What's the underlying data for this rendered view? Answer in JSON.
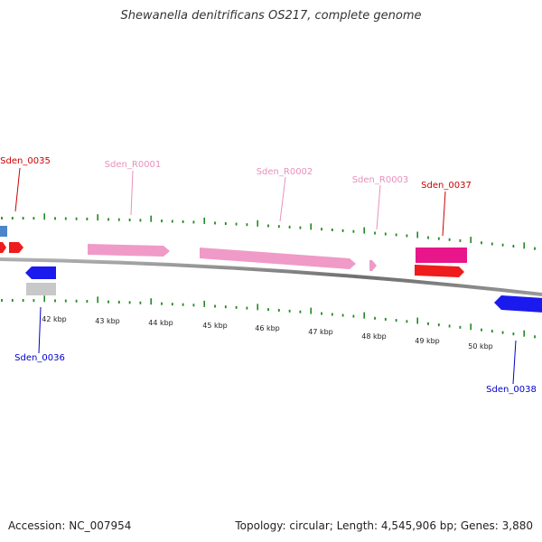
{
  "title": "Shewanella denitrificans OS217, complete genome",
  "footer": {
    "accession": "Accession: NC_007954",
    "summary": "Topology: circular; Length: 4,545,906 bp; Genes: 3,880"
  },
  "colors": {
    "backbone": "#8a8a8a",
    "tick": "#1f8a1f",
    "gene_red": "#ee1c1c",
    "gene_blue": "#1a1aee",
    "gene_pink": "#f09ac8",
    "gene_magenta": "#e8168a",
    "gene_grey": "#c8c8c8",
    "gene_steelblue": "#4a86c8",
    "label_red": "#cc0000",
    "label_blue": "#0000cc",
    "label_pink": "#e890bc"
  },
  "scale_labels": [
    "42 kbp",
    "43 kbp",
    "44 kbp",
    "45 kbp",
    "46 kbp",
    "47 kbp",
    "48 kbp",
    "49 kbp",
    "50 kbp"
  ],
  "gene_labels": [
    {
      "text": "Sden_0035",
      "color": "red"
    },
    {
      "text": "Sden_R0001",
      "color": "pink"
    },
    {
      "text": "Sden_R0002",
      "color": "pink"
    },
    {
      "text": "Sden_R0003",
      "color": "pink"
    },
    {
      "text": "Sden_0037",
      "color": "red"
    },
    {
      "text": "Sden_0036",
      "color": "blue"
    },
    {
      "text": "Sden_0038",
      "color": "blue"
    }
  ]
}
